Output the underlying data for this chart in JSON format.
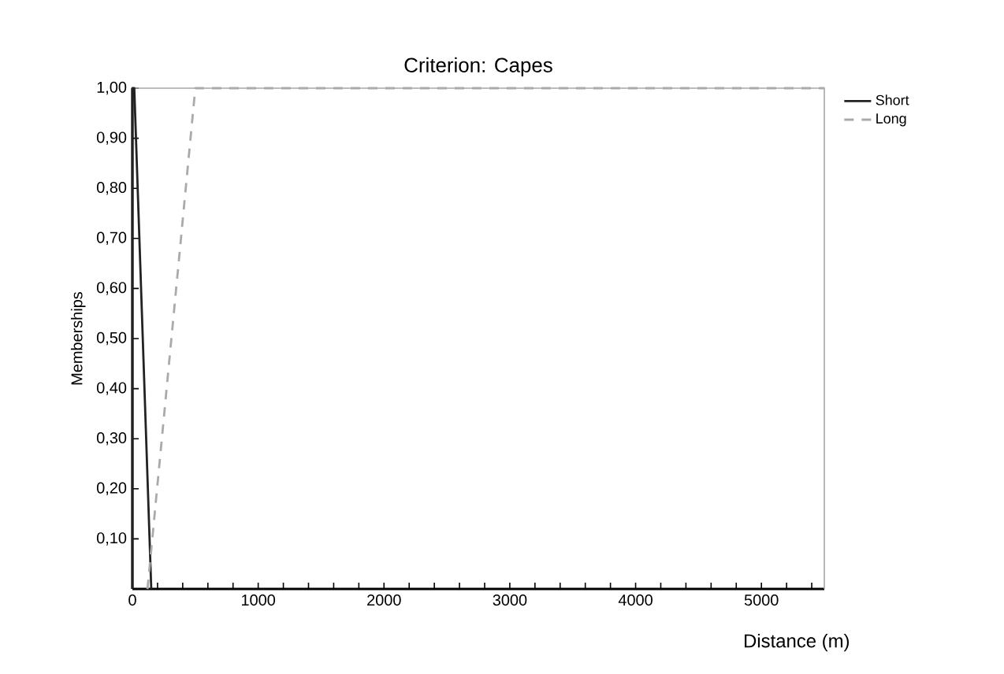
{
  "chart_data": {
    "type": "line",
    "title": "Criterion: Capes",
    "xlabel": "Distance (m)",
    "ylabel": "Memberships",
    "series": [
      {
        "name": "Short",
        "color": "#222222",
        "line_style": "solid",
        "x": [
          0,
          0,
          15,
          150
        ],
        "values": [
          0,
          1,
          1,
          0
        ]
      },
      {
        "name": "Long",
        "color": "#aaaaaa",
        "line_style": "dashed",
        "x": [
          120,
          500,
          5500
        ],
        "values": [
          0,
          1,
          1
        ]
      }
    ],
    "xlim": [
      0,
      5500
    ],
    "ylim": [
      0,
      1
    ],
    "xticks": [
      0,
      {
        "value": 200,
        "label": null
      },
      {
        "value": 400,
        "label": null
      },
      {
        "value": 600,
        "label": null
      },
      {
        "value": 800,
        "label": null
      },
      1000,
      {
        "value": 1200,
        "label": null
      },
      {
        "value": 1400,
        "label": null
      },
      {
        "value": 1600,
        "label": null
      },
      {
        "value": 1800,
        "label": null
      },
      2000,
      {
        "value": 2200,
        "label": null
      },
      {
        "value": 2400,
        "label": null
      },
      {
        "value": 2600,
        "label": null
      },
      {
        "value": 2800,
        "label": null
      },
      3000,
      {
        "value": 3200,
        "label": null
      },
      {
        "value": 3400,
        "label": null
      },
      {
        "value": 3600,
        "label": null
      },
      {
        "value": 3800,
        "label": null
      },
      4000,
      {
        "value": 4200,
        "label": null
      },
      {
        "value": 4400,
        "label": null
      },
      {
        "value": 4600,
        "label": null
      },
      {
        "value": 4800,
        "label": null
      },
      5000,
      {
        "value": 5200,
        "label": null
      },
      {
        "value": 5400,
        "label": null
      }
    ],
    "yticks": [
      {
        "value": 0.1,
        "label": "0,10"
      },
      {
        "value": 0.2,
        "label": "0,20"
      },
      {
        "value": 0.3,
        "label": "0,30"
      },
      {
        "value": 0.4,
        "label": "0,40"
      },
      {
        "value": 0.5,
        "label": "0,50"
      },
      {
        "value": 0.6,
        "label": "0,60"
      },
      {
        "value": 0.7,
        "label": "0,70"
      },
      {
        "value": 0.8,
        "label": "0,80"
      },
      {
        "value": 0.9,
        "label": "0,90"
      },
      {
        "value": 1.0,
        "label": "1,00"
      }
    ],
    "legend": "top right",
    "grid": false,
    "marker": "none"
  }
}
